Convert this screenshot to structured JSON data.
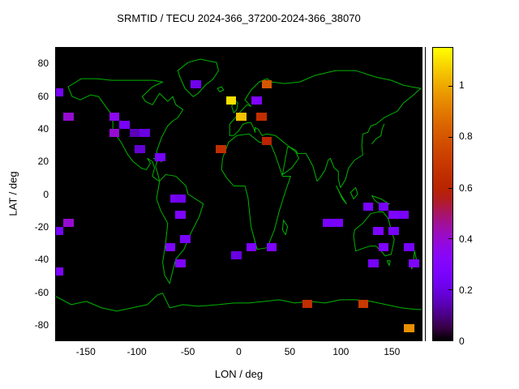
{
  "chart_data": {
    "type": "heatmap",
    "title": "SRMTID / TECU 2024-366_37200-2024-366_38070",
    "xlabel": "LON / deg",
    "ylabel": "LAT / deg",
    "lon_range": [
      -180,
      180
    ],
    "lat_range": [
      -90,
      90
    ],
    "x_ticks": [
      -150,
      -100,
      -50,
      0,
      50,
      100,
      150
    ],
    "y_ticks": [
      80,
      60,
      40,
      20,
      0,
      -20,
      -40,
      -60,
      -80
    ],
    "grid": false,
    "legend_position": "right-colorbar",
    "colorbar": {
      "min": 0,
      "max": 1.15,
      "ticks": [
        0,
        0.2,
        0.4,
        0.6,
        0.8,
        1
      ],
      "palette": "gnuplot-pm3d-7-5-15"
    },
    "cell_size": {
      "lon": 10,
      "lat": 5
    },
    "colors": {
      "plot_background": "#000000",
      "coastline": "#00b400",
      "page_background": "#ffffff",
      "text": "#000000"
    },
    "cells": [
      {
        "lon": -177.5,
        "lat": 62.5,
        "tecu": 0.25
      },
      {
        "lon": -42.5,
        "lat": 67.5,
        "tecu": 0.22
      },
      {
        "lon": 27.5,
        "lat": 67.5,
        "tecu": 0.8
      },
      {
        "lon": -7.5,
        "lat": 57.5,
        "tecu": 1.1
      },
      {
        "lon": 17.5,
        "lat": 57.5,
        "tecu": 0.28
      },
      {
        "lon": 2.5,
        "lat": 47.5,
        "tecu": 1.05
      },
      {
        "lon": 22.5,
        "lat": 47.5,
        "tecu": 0.65
      },
      {
        "lon": 27.5,
        "lat": 32.5,
        "tecu": 0.6
      },
      {
        "lon": -17.5,
        "lat": 27.5,
        "tecu": 0.65
      },
      {
        "lon": -167.5,
        "lat": 47.5,
        "tecu": 0.4
      },
      {
        "lon": -122.5,
        "lat": 47.5,
        "tecu": 0.35
      },
      {
        "lon": -112.5,
        "lat": 42.5,
        "tecu": 0.25
      },
      {
        "lon": -122.5,
        "lat": 37.5,
        "tecu": 0.4
      },
      {
        "lon": -102.5,
        "lat": 37.5,
        "tecu": 0.15
      },
      {
        "lon": -92.5,
        "lat": 37.5,
        "tecu": 0.2
      },
      {
        "lon": -97.5,
        "lat": 27.5,
        "tecu": 0.18
      },
      {
        "lon": -77.5,
        "lat": 22.5,
        "tecu": 0.25
      },
      {
        "lon": -62.5,
        "lat": -2.5,
        "tecu": 0.25
      },
      {
        "lon": -57.5,
        "lat": -2.5,
        "tecu": 0.22
      },
      {
        "lon": -57.5,
        "lat": -12.5,
        "tecu": 0.28
      },
      {
        "lon": -52.5,
        "lat": -27.5,
        "tecu": 0.25
      },
      {
        "lon": -67.5,
        "lat": -32.5,
        "tecu": 0.28
      },
      {
        "lon": -57.5,
        "lat": -42.5,
        "tecu": 0.28
      },
      {
        "lon": -167.5,
        "lat": -17.5,
        "tecu": 0.4
      },
      {
        "lon": -177.5,
        "lat": -22.5,
        "tecu": 0.25
      },
      {
        "lon": -177.5,
        "lat": -47.5,
        "tecu": 0.28
      },
      {
        "lon": -2.5,
        "lat": -37.5,
        "tecu": 0.2
      },
      {
        "lon": 12.5,
        "lat": -32.5,
        "tecu": 0.28
      },
      {
        "lon": 32.5,
        "lat": -32.5,
        "tecu": 0.28
      },
      {
        "lon": 87.5,
        "lat": -17.5,
        "tecu": 0.25
      },
      {
        "lon": 97.5,
        "lat": -17.5,
        "tecu": 0.25
      },
      {
        "lon": 127.5,
        "lat": -7.5,
        "tecu": 0.25
      },
      {
        "lon": 142.5,
        "lat": -7.5,
        "tecu": 0.25
      },
      {
        "lon": 152.5,
        "lat": -12.5,
        "tecu": 0.28
      },
      {
        "lon": 162.5,
        "lat": -12.5,
        "tecu": 0.25
      },
      {
        "lon": 137.5,
        "lat": -22.5,
        "tecu": 0.28
      },
      {
        "lon": 152.5,
        "lat": -22.5,
        "tecu": 0.25
      },
      {
        "lon": 142.5,
        "lat": -32.5,
        "tecu": 0.28
      },
      {
        "lon": 167.5,
        "lat": -32.5,
        "tecu": 0.25
      },
      {
        "lon": 132.5,
        "lat": -42.5,
        "tecu": 0.25
      },
      {
        "lon": 172.5,
        "lat": -42.5,
        "tecu": 0.28
      },
      {
        "lon": 67.5,
        "lat": -67.5,
        "tecu": 0.65
      },
      {
        "lon": 122.5,
        "lat": -67.5,
        "tecu": 0.7
      },
      {
        "lon": 167.5,
        "lat": -82.5,
        "tecu": 0.95
      }
    ]
  }
}
